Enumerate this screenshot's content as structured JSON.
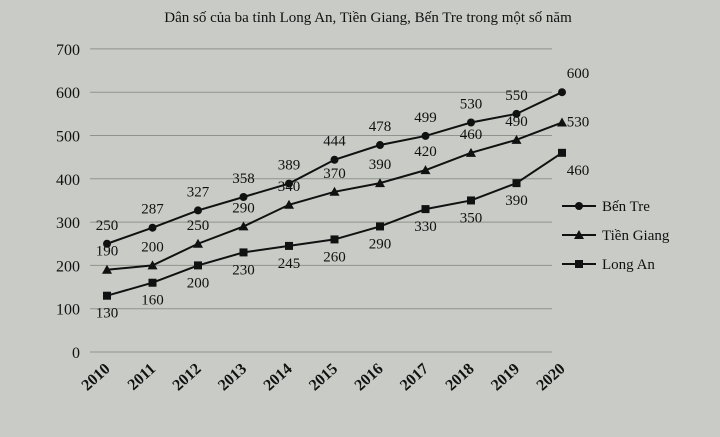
{
  "chart_data": {
    "type": "line",
    "title": "Dân số của ba tỉnh Long An, Tiền Giang, Bến Tre trong một số năm",
    "xlabel": "",
    "ylabel": "",
    "categories": [
      "2010",
      "2011",
      "2012",
      "2013",
      "2014",
      "2015",
      "2016",
      "2017",
      "2018",
      "2019",
      "2020"
    ],
    "y_ticks": [
      "0",
      "100",
      "200",
      "300",
      "400",
      "500",
      "600",
      "700"
    ],
    "ylim": [
      0,
      700
    ],
    "grid": true,
    "legend_position": "right",
    "series": [
      {
        "name": "Bến Tre",
        "marker": "circle",
        "values": [
          250,
          287,
          327,
          358,
          389,
          444,
          478,
          499,
          530,
          550,
          600
        ]
      },
      {
        "name": "Tiền Giang",
        "marker": "triangle",
        "values": [
          190,
          200,
          250,
          290,
          340,
          370,
          390,
          420,
          460,
          490,
          530
        ]
      },
      {
        "name": "Long An",
        "marker": "square",
        "values": [
          130,
          160,
          200,
          230,
          245,
          260,
          290,
          330,
          350,
          390,
          460
        ]
      }
    ],
    "colors": {
      "line": "#111111",
      "grid": "#8f938d",
      "background": "#c9ccc6"
    }
  }
}
